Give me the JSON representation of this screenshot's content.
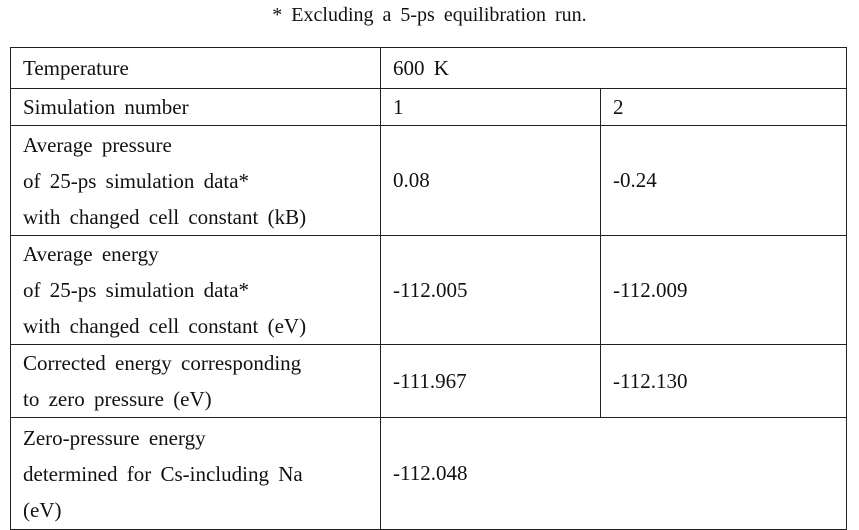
{
  "caption": "* Excluding a 5-ps equilibration run.",
  "table": {
    "rows": [
      {
        "label": [
          "Temperature"
        ],
        "cells": [
          "600 K"
        ]
      },
      {
        "label": [
          "Simulation number"
        ],
        "cells": [
          "1",
          "2"
        ]
      },
      {
        "label": [
          "Average pressure",
          "of 25-ps simulation data*",
          "with changed cell constant (kB)"
        ],
        "cells": [
          "0.08",
          "-0.24"
        ]
      },
      {
        "label": [
          "Average energy",
          "of 25-ps simulation data*",
          "with changed cell constant (eV)"
        ],
        "cells": [
          "-112.005",
          "-112.009"
        ]
      },
      {
        "label": [
          "Corrected energy corresponding",
          "to zero pressure (eV)"
        ],
        "cells": [
          "-111.967",
          "-112.130"
        ]
      },
      {
        "label": [
          "Zero-pressure energy",
          "determined for Cs-including Na",
          "(eV)"
        ],
        "cells": [
          "-112.048"
        ]
      }
    ]
  }
}
